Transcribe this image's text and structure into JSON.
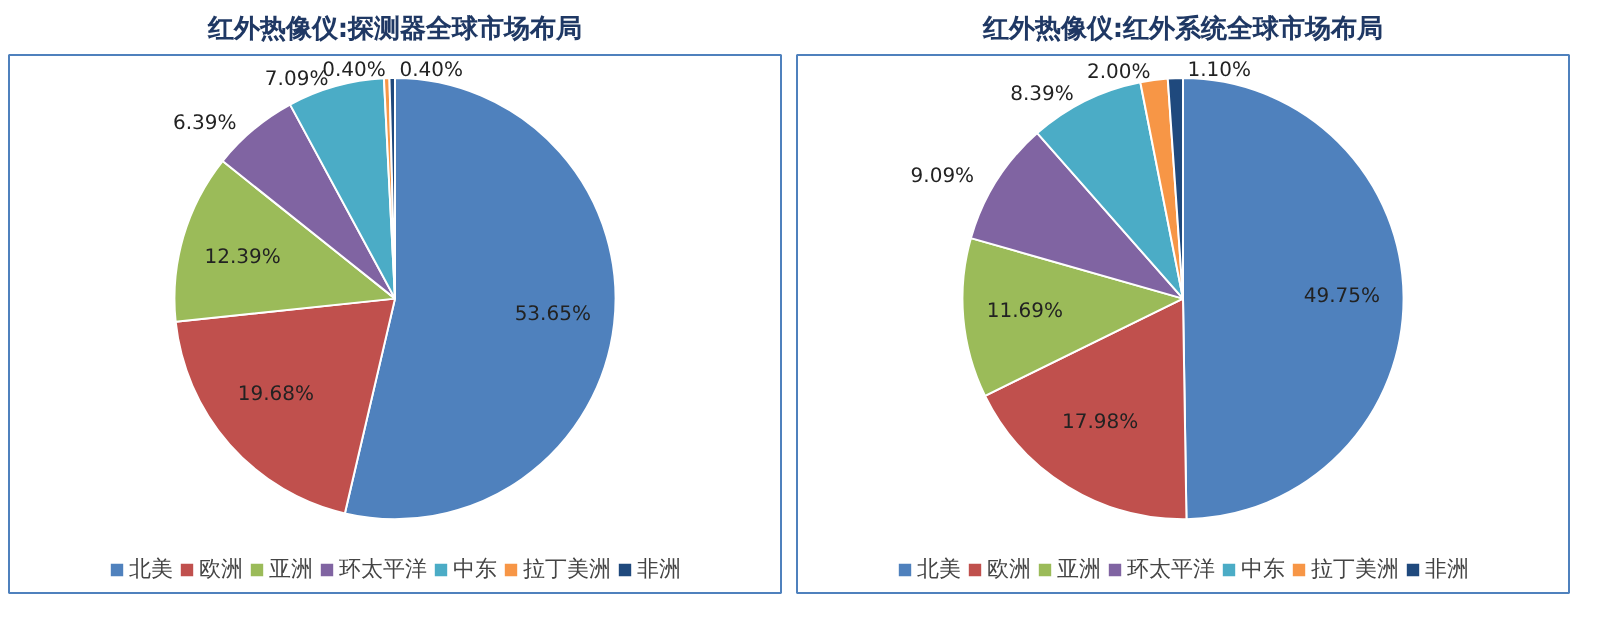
{
  "chart_data": [
    {
      "type": "pie",
      "title": "红外热像仪:探测器全球市场布局",
      "categories": [
        "北美",
        "欧洲",
        "亚洲",
        "环太平洋",
        "中东",
        "拉丁美洲",
        "非洲"
      ],
      "values": [
        53.65,
        19.68,
        12.39,
        6.39,
        7.09,
        0.4,
        0.4
      ],
      "colors": [
        "#4f81bd",
        "#c0504d",
        "#9bbb59",
        "#8064a2",
        "#4bacc6",
        "#f79646",
        "#1f497d"
      ],
      "value_labels": [
        "53.65%",
        "19.68%",
        "12.39%",
        "6.39%",
        "7.09%",
        "0.40%",
        "0.40%"
      ],
      "legend": "bottom"
    },
    {
      "type": "pie",
      "title": "红外热像仪:红外系统全球市场布局",
      "categories": [
        "北美",
        "欧洲",
        "亚洲",
        "环太平洋",
        "中东",
        "拉丁美洲",
        "非洲"
      ],
      "values": [
        49.75,
        17.98,
        11.69,
        9.09,
        8.39,
        2.0,
        1.1
      ],
      "colors": [
        "#4f81bd",
        "#c0504d",
        "#9bbb59",
        "#8064a2",
        "#4bacc6",
        "#f79646",
        "#1f497d"
      ],
      "value_labels": [
        "49.75%",
        "17.98%",
        "11.69%",
        "9.09%",
        "8.39%",
        "2.00%",
        "1.10%"
      ],
      "legend": "bottom"
    }
  ]
}
